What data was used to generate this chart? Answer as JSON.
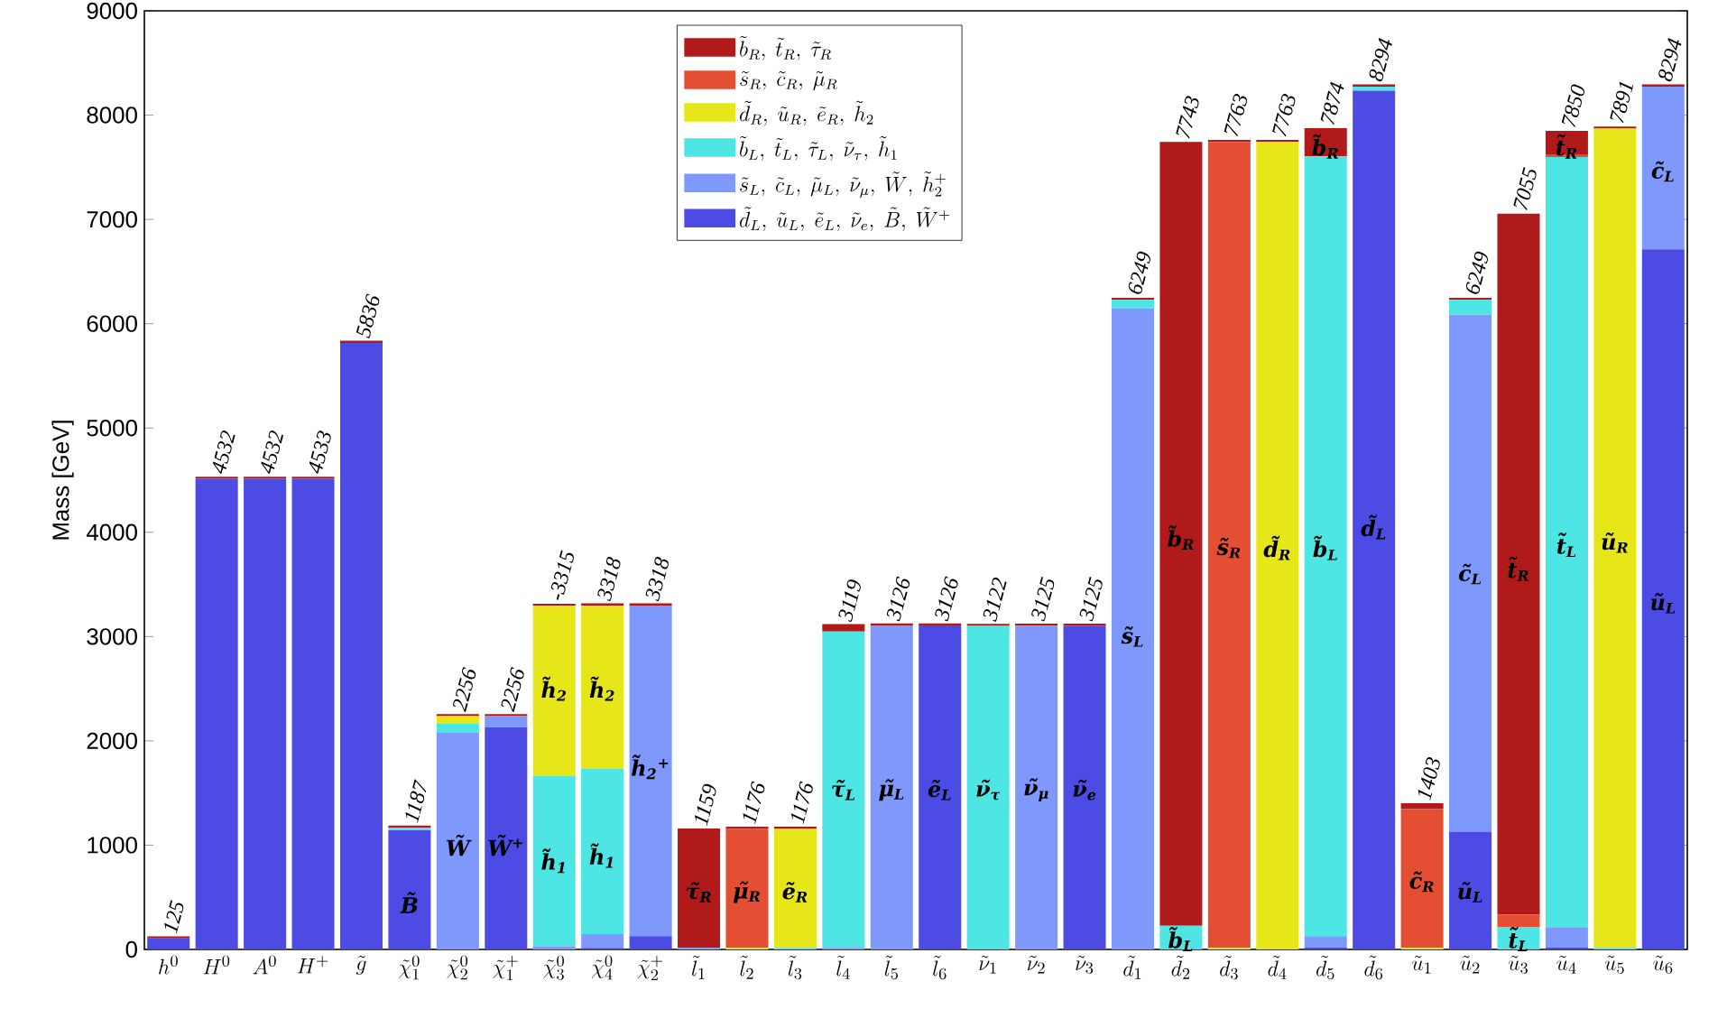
{
  "chart_data": {
    "type": "bar",
    "stacked": true,
    "ylabel": "Mass [GeV]",
    "legend": "top",
    "ylim": [
      0,
      9000
    ],
    "yticks": [
      0,
      1000,
      2000,
      3000,
      4000,
      5000,
      6000,
      7000,
      8000,
      9000
    ],
    "categories": [
      "h^0",
      "H^0",
      "A^0",
      "H^+",
      "\\tilde{g}",
      "\\tilde{\\chi}_1^0",
      "\\tilde{\\chi}_2^0",
      "\\tilde{\\chi}_1^+",
      "\\tilde{\\chi}_3^0",
      "\\tilde{\\chi}_4^0",
      "\\tilde{\\chi}_2^+",
      "\\tilde{l}_1",
      "\\tilde{l}_2",
      "\\tilde{l}_3",
      "\\tilde{l}_4",
      "\\tilde{l}_5",
      "\\tilde{l}_6",
      "\\tilde{\\nu}_1",
      "\\tilde{\\nu}_2",
      "\\tilde{\\nu}_3",
      "\\tilde{d}_1",
      "\\tilde{d}_2",
      "\\tilde{d}_3",
      "\\tilde{d}_4",
      "\\tilde{d}_5",
      "\\tilde{d}_6",
      "\\tilde{u}_1",
      "\\tilde{u}_2",
      "\\tilde{u}_3",
      "\\tilde{u}_4",
      "\\tilde{u}_5",
      "\\tilde{u}_6"
    ],
    "series": [
      {
        "name": "\\tilde{d}_L,\\ \\tilde{u}_L,\\ \\tilde{e}_L,\\ \\tilde{\\nu}_e,\\ \\tilde{B},\\ \\tilde{W}^+",
        "color": "#4c4ce4",
        "values": [
          105,
          4512,
          4512,
          4513,
          5816,
          1142,
          0,
          2128,
          0,
          15,
          128,
          0,
          0,
          0,
          0,
          0,
          3106,
          0,
          0,
          3105,
          0,
          0,
          0,
          0,
          20,
          8235,
          0,
          1130,
          0,
          20,
          0,
          6714
        ]
      },
      {
        "name": "\\tilde{s}_L,\\ \\tilde{c}_L,\\ \\tilde{\\mu}_L,\\ \\tilde{\\nu}_\\mu,\\ \\tilde{W},\\ \\tilde{h}_2^+",
        "color": "#7f98fc",
        "values": [
          0,
          0,
          0,
          0,
          0,
          0,
          2076,
          108,
          30,
          132,
          3170,
          15,
          0,
          0,
          15,
          3106,
          0,
          0,
          3105,
          0,
          6147,
          0,
          0,
          0,
          108,
          0,
          0,
          4955,
          0,
          195,
          0,
          1560
        ]
      },
      {
        "name": "\\tilde{b}_L,\\ \\tilde{t}_L,\\ \\tilde{\\tau}_L,\\ \\tilde{\\nu}_\\tau,\\ \\tilde{h}_1",
        "color": "#4ee5e5",
        "values": [
          0,
          0,
          0,
          0,
          0,
          25,
          92,
          0,
          1631,
          1583,
          0,
          0,
          0,
          15,
          3034,
          0,
          0,
          3102,
          0,
          0,
          82,
          227,
          0,
          0,
          7477,
          39,
          0,
          144,
          213,
          7383,
          15,
          0
        ]
      },
      {
        "name": "\\tilde{d}_R,\\ \\tilde{u}_R,\\ \\tilde{e}_R,\\ \\tilde{h}_2",
        "color": "#e6e619",
        "values": [
          0,
          0,
          0,
          0,
          0,
          0,
          68,
          0,
          1634,
          1568,
          0,
          0,
          15,
          1141,
          0,
          0,
          0,
          0,
          0,
          0,
          0,
          0,
          15,
          7743,
          0,
          0,
          15,
          0,
          0,
          0,
          7856,
          0
        ]
      },
      {
        "name": "\\tilde{s}_R,\\ \\tilde{c}_R,\\ \\tilde{\\mu}_R",
        "color": "#e44e33",
        "values": [
          0,
          0,
          0,
          0,
          0,
          0,
          0,
          0,
          0,
          0,
          0,
          0,
          1141,
          0,
          0,
          0,
          0,
          0,
          0,
          0,
          0,
          0,
          7728,
          0,
          0,
          0,
          1331,
          0,
          121,
          20,
          0,
          0
        ]
      },
      {
        "name": "\\tilde{b}_R,\\ \\tilde{t}_R,\\ \\tilde{\\tau}_R",
        "color": "#b01a1a",
        "values": [
          20,
          20,
          20,
          20,
          20,
          20,
          20,
          20,
          20,
          20,
          20,
          1144,
          20,
          20,
          70,
          20,
          20,
          20,
          20,
          20,
          20,
          7516,
          20,
          20,
          269,
          20,
          57,
          20,
          6721,
          232,
          20,
          20
        ]
      }
    ],
    "totals": [
      "125",
      "4532",
      "4532",
      "4533",
      "5836",
      "1187",
      "2256",
      "2256",
      null,
      "3318",
      "3318",
      "1159",
      "1176",
      "1176",
      "3119",
      "3126",
      "3126",
      "3122",
      "3125",
      "3125",
      "6249",
      "7743",
      "7763",
      "7763",
      "7874",
      "8294",
      "1403",
      "6249",
      "7055",
      "7850",
      "7891",
      "8294"
    ],
    "annotations": [
      "B̃",
      "W̃$^{+}$",
      "W̃",
      "h̃$_{2}$",
      "h̃$_{1}$",
      "h̃$_{2}$",
      "h̃$_{1}$",
      "h̃$_{2}$$^{+}$",
      "τ̃$_{R}$",
      "μ̃$_{R}$",
      "ẽ$_{R}$",
      "τ̃$_{L}$",
      "μ̃$_{L}$",
      "ẽ$_{L}$",
      "ν̃$_{τ}$",
      "ν̃$_{μ}$",
      "ν̃$_{e}$",
      "s̃$_{L}$",
      "b̃$_{R}$",
      "b̃$_{L}$",
      "s̃$_{R}$",
      "d̃$_{R}$",
      "b̃$_{L}$",
      "b̃$_{R}$",
      "d̃$_{L}$",
      "c̃$_{R}$",
      "c̃$_{L}$",
      "ũ$_{L}$",
      "t̃$_{R}$",
      "t̃$_{L}$",
      "t̃$_{L}$",
      "t̃$_{R}$",
      "ũ$_{R}$",
      "ũ$_{L}$",
      "c̃$_{L}$",
      "-3315"
    ]
  }
}
